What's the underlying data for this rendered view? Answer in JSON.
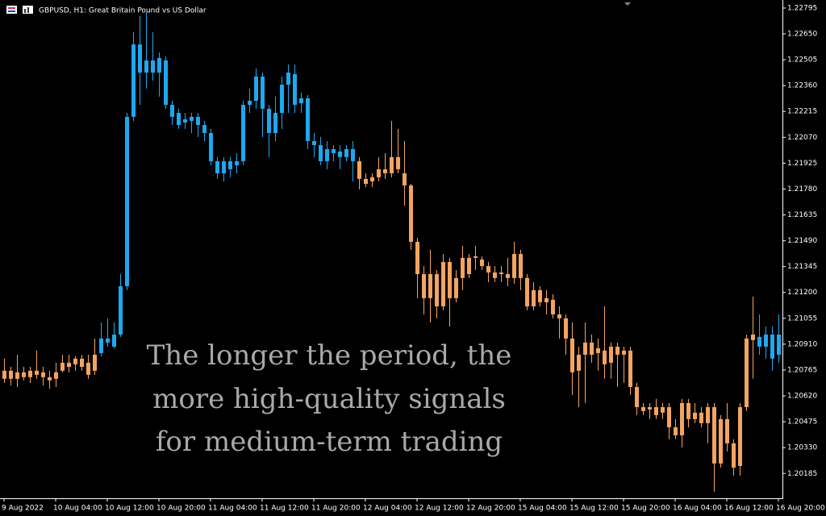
{
  "chart_data": {
    "type": "candlestick",
    "title": "GBPUSD, H1:  Great Britain Pound vs US Dollar",
    "annotation": [
      "The longer the period, the",
      "more high-quality signals",
      "for medium-term trading"
    ],
    "categories": [
      "9 Aug 2022",
      null,
      null,
      null,
      null,
      null,
      null,
      null,
      "10 Aug 04:00",
      null,
      null,
      null,
      null,
      null,
      null,
      null,
      "10 Aug 12:00",
      null,
      null,
      null,
      null,
      null,
      null,
      null,
      "10 Aug 20:00",
      null,
      null,
      null,
      null,
      null,
      null,
      null,
      "11 Aug 04:00",
      null,
      null,
      null,
      null,
      null,
      null,
      null,
      "11 Aug 12:00",
      null,
      null,
      null,
      null,
      null,
      null,
      null,
      "11 Aug 20:00",
      null,
      null,
      null,
      null,
      null,
      null,
      null,
      "12 Aug 04:00",
      null,
      null,
      null,
      null,
      null,
      null,
      null,
      "12 Aug 12:00",
      null,
      null,
      null,
      null,
      null,
      null,
      null,
      "12 Aug 20:00",
      null,
      null,
      null,
      null,
      null,
      null,
      null,
      "15 Aug 04:00",
      null,
      null,
      null,
      null,
      null,
      null,
      null,
      "15 Aug 12:00",
      null,
      null,
      null,
      null,
      null,
      null,
      null,
      "15 Aug 20:00",
      null,
      null,
      null,
      null,
      null,
      null,
      null,
      "16 Aug 04:00",
      null,
      null,
      null,
      null,
      null,
      null,
      null,
      "16 Aug 12:00",
      null,
      null,
      null,
      null,
      null,
      null,
      null,
      "16 Aug 20:00"
    ],
    "ohlc": [
      [
        1.20761,
        1.20829,
        1.20693,
        1.20716
      ],
      [
        1.20716,
        1.20783,
        1.20679,
        1.20761
      ],
      [
        1.20752,
        1.20851,
        1.2067,
        1.20716
      ],
      [
        1.20725,
        1.20783,
        1.20707,
        1.20752
      ],
      [
        1.20761,
        1.20783,
        1.20693,
        1.20725
      ],
      [
        1.20738,
        1.20874,
        1.20716,
        1.20761
      ],
      [
        1.20752,
        1.20783,
        1.20679,
        1.20725
      ],
      [
        1.20725,
        1.20761,
        1.20661,
        1.20707
      ],
      [
        1.20716,
        1.20806,
        1.2067,
        1.20752
      ],
      [
        1.20761,
        1.20851,
        1.20752,
        1.20806
      ],
      [
        1.20806,
        1.20851,
        1.20752,
        1.20783
      ],
      [
        1.20797,
        1.20842,
        1.20761,
        1.20829
      ],
      [
        1.20829,
        1.20851,
        1.20761,
        1.20783
      ],
      [
        1.20806,
        1.20851,
        1.20716,
        1.20738
      ],
      [
        1.20761,
        1.20942,
        1.20738,
        1.20851
      ],
      [
        1.2086,
        1.21032,
        1.20842,
        1.20942
      ],
      [
        1.20919,
        1.21055,
        1.20896,
        1.20942
      ],
      [
        1.20896,
        1.21032,
        1.20887,
        1.20964
      ],
      [
        1.20964,
        1.21303,
        1.20951,
        1.21235
      ],
      [
        1.21235,
        1.22207,
        1.21213,
        1.22185
      ],
      [
        1.22185,
        1.22659,
        1.22162,
        1.22591
      ],
      [
        1.22433,
        1.2275,
        1.22252,
        1.22591
      ],
      [
        1.22433,
        1.22772,
        1.22343,
        1.22501
      ],
      [
        1.22501,
        1.22659,
        1.22388,
        1.22433
      ],
      [
        1.22433,
        1.22546,
        1.22298,
        1.22515
      ],
      [
        1.22501,
        1.22524,
        1.2223,
        1.22252
      ],
      [
        1.22252,
        1.22275,
        1.22139,
        1.22185
      ],
      [
        1.22207,
        1.2223,
        1.22117,
        1.22139
      ],
      [
        1.22171,
        1.22207,
        1.22117,
        1.22153
      ],
      [
        1.22162,
        1.22207,
        1.22094,
        1.22185
      ],
      [
        1.22185,
        1.22207,
        1.22072,
        1.22139
      ],
      [
        1.22139,
        1.22162,
        1.22049,
        1.22094
      ],
      [
        1.22094,
        1.22117,
        1.21913,
        1.21936
      ],
      [
        1.21936,
        1.21959,
        1.21837,
        1.21868
      ],
      [
        1.21868,
        1.21959,
        1.21823,
        1.21936
      ],
      [
        1.21936,
        1.21959,
        1.21846,
        1.21891
      ],
      [
        1.21913,
        1.21981,
        1.21868,
        1.21936
      ],
      [
        1.21936,
        1.22275,
        1.21913,
        1.22252
      ],
      [
        1.22252,
        1.22343,
        1.22207,
        1.22275
      ],
      [
        1.22275,
        1.22456,
        1.2223,
        1.22411
      ],
      [
        1.22411,
        1.22433,
        1.22072,
        1.2223
      ],
      [
        1.2223,
        1.22252,
        1.21959,
        1.22094
      ],
      [
        1.22094,
        1.22298,
        1.22049,
        1.22207
      ],
      [
        1.22207,
        1.22411,
        1.22117,
        1.22365
      ],
      [
        1.22365,
        1.22478,
        1.22207,
        1.22433
      ],
      [
        1.22424,
        1.22478,
        1.22207,
        1.22252
      ],
      [
        1.22261,
        1.2232,
        1.22207,
        1.22289
      ],
      [
        1.22289,
        1.22307,
        1.22004,
        1.22049
      ],
      [
        1.22049,
        1.22094,
        1.21959,
        1.22026
      ],
      [
        1.22026,
        1.22072,
        1.21913,
        1.21936
      ],
      [
        1.21936,
        1.22049,
        1.21891,
        1.22004
      ],
      [
        1.22004,
        1.22026,
        1.21936,
        1.21981
      ],
      [
        1.2199,
        1.22026,
        1.21891,
        1.21959
      ],
      [
        1.21959,
        1.22026,
        1.21936,
        1.22004
      ],
      [
        1.22004,
        1.22049,
        1.21823,
        1.21936
      ],
      [
        1.21936,
        1.21959,
        1.21778,
        1.21837
      ],
      [
        1.21837,
        1.21868,
        1.21791,
        1.21809
      ],
      [
        1.21823,
        1.21868,
        1.21791,
        1.21846
      ],
      [
        1.21846,
        1.21959,
        1.21823,
        1.21891
      ],
      [
        1.21891,
        1.21981,
        1.21837,
        1.21868
      ],
      [
        1.21868,
        1.22162,
        1.21846,
        1.21959
      ],
      [
        1.21959,
        1.22117,
        1.21868,
        1.21891
      ],
      [
        1.21868,
        1.22049,
        1.21687,
        1.218
      ],
      [
        1.218,
        1.21809,
        1.21439,
        1.21484
      ],
      [
        1.21484,
        1.21507,
        1.21168,
        1.21303
      ],
      [
        1.21303,
        1.21348,
        1.21077,
        1.21168
      ],
      [
        1.21168,
        1.21439,
        1.21032,
        1.21303
      ],
      [
        1.21303,
        1.21326,
        1.21055,
        1.21122
      ],
      [
        1.21122,
        1.21416,
        1.211,
        1.21371
      ],
      [
        1.21371,
        1.21394,
        1.21009,
        1.21168
      ],
      [
        1.21168,
        1.21326,
        1.21145,
        1.21281
      ],
      [
        1.21281,
        1.21461,
        1.21213,
        1.21394
      ],
      [
        1.21394,
        1.21416,
        1.21281,
        1.21303
      ],
      [
        1.21403,
        1.21461,
        1.21326,
        1.21394
      ],
      [
        1.21385,
        1.21403,
        1.21326,
        1.21348
      ],
      [
        1.21348,
        1.21371,
        1.21258,
        1.21312
      ],
      [
        1.21312,
        1.21348,
        1.21258,
        1.21281
      ],
      [
        1.21303,
        1.21348,
        1.21258,
        1.21312
      ],
      [
        1.21303,
        1.21394,
        1.21235,
        1.21281
      ],
      [
        1.21281,
        1.21484,
        1.21249,
        1.21416
      ],
      [
        1.21416,
        1.21439,
        1.21213,
        1.21281
      ],
      [
        1.21281,
        1.21303,
        1.211,
        1.21122
      ],
      [
        1.21122,
        1.21258,
        1.211,
        1.21213
      ],
      [
        1.21213,
        1.21235,
        1.21122,
        1.21145
      ],
      [
        1.21145,
        1.21213,
        1.21077,
        1.21168
      ],
      [
        1.21159,
        1.2119,
        1.21055,
        1.21077
      ],
      [
        1.21077,
        1.21122,
        1.20942,
        1.21055
      ],
      [
        1.21055,
        1.21077,
        1.20851,
        1.20942
      ],
      [
        1.20942,
        1.21032,
        1.20625,
        1.20752
      ],
      [
        1.20761,
        1.20896,
        1.20557,
        1.20851
      ],
      [
        1.20851,
        1.21032,
        1.2058,
        1.20919
      ],
      [
        1.20919,
        1.20964,
        1.20806,
        1.20851
      ],
      [
        1.2086,
        1.20942,
        1.20761,
        1.20887
      ],
      [
        1.20874,
        1.21122,
        1.20716,
        1.20797
      ],
      [
        1.20806,
        1.20919,
        1.20716,
        1.20896
      ],
      [
        1.20896,
        1.20919,
        1.2067,
        1.20851
      ],
      [
        1.20851,
        1.20896,
        1.20693,
        1.20874
      ],
      [
        1.20874,
        1.20896,
        1.20625,
        1.2067
      ],
      [
        1.2067,
        1.20693,
        1.20512,
        1.20557
      ],
      [
        1.20557,
        1.2058,
        1.20512,
        1.20535
      ],
      [
        1.20544,
        1.2058,
        1.2049,
        1.20557
      ],
      [
        1.20557,
        1.20603,
        1.2049,
        1.20512
      ],
      [
        1.20526,
        1.2058,
        1.2049,
        1.20557
      ],
      [
        1.20557,
        1.2058,
        1.20377,
        1.20444
      ],
      [
        1.20444,
        1.2049,
        1.20377,
        1.20399
      ],
      [
        1.20399,
        1.20603,
        1.20331,
        1.2058
      ],
      [
        1.2058,
        1.20603,
        1.20444,
        1.2049
      ],
      [
        1.2049,
        1.2058,
        1.20467,
        1.20526
      ],
      [
        1.20526,
        1.20557,
        1.20444,
        1.20467
      ],
      [
        1.20467,
        1.2058,
        1.20354,
        1.20557
      ],
      [
        1.20557,
        1.2058,
        1.20083,
        1.20241
      ],
      [
        1.20241,
        1.20512,
        1.20218,
        1.2049
      ],
      [
        1.2049,
        1.2058,
        1.20309,
        1.20354
      ],
      [
        1.20354,
        1.20377,
        1.20173,
        1.20218
      ],
      [
        1.20227,
        1.2058,
        1.20173,
        1.20557
      ],
      [
        1.20557,
        1.20964,
        1.20535,
        1.20942
      ],
      [
        1.20933,
        1.21177,
        1.20716,
        1.20964
      ],
      [
        1.20951,
        1.21077,
        1.20851,
        1.20896
      ],
      [
        1.20896,
        1.21009,
        1.20829,
        1.20964
      ],
      [
        1.20964,
        1.21009,
        1.20761,
        1.20829
      ],
      [
        1.20851,
        1.21077,
        1.20806,
        1.20964
      ]
    ],
    "colors": [
      "#f4a460",
      "#f4a460",
      "#f4a460",
      "#f4a460",
      "#f4a460",
      "#f4a460",
      "#f4a460",
      "#f4a460",
      "#f4a460",
      "#f4a460",
      "#f4a460",
      "#f4a460",
      "#f4a460",
      "#f4a460",
      "#f4a460",
      "#1ea8f0",
      "#1ea8f0",
      "#1ea8f0",
      "#1ea8f0",
      "#1ea8f0",
      "#1ea8f0",
      "#1ea8f0",
      "#1ea8f0",
      "#1ea8f0",
      "#1ea8f0",
      "#1ea8f0",
      "#1ea8f0",
      "#1ea8f0",
      "#1ea8f0",
      "#1ea8f0",
      "#1ea8f0",
      "#1ea8f0",
      "#1ea8f0",
      "#1ea8f0",
      "#1ea8f0",
      "#1ea8f0",
      "#1ea8f0",
      "#1ea8f0",
      "#1ea8f0",
      "#1ea8f0",
      "#1ea8f0",
      "#1ea8f0",
      "#1ea8f0",
      "#1ea8f0",
      "#1ea8f0",
      "#1ea8f0",
      "#1ea8f0",
      "#1ea8f0",
      "#1ea8f0",
      "#1ea8f0",
      "#1ea8f0",
      "#1ea8f0",
      "#1ea8f0",
      "#1ea8f0",
      "#1ea8f0",
      "#f4a460",
      "#f4a460",
      "#f4a460",
      "#f4a460",
      "#f4a460",
      "#f4a460",
      "#f4a460",
      "#f4a460",
      "#f4a460",
      "#f4a460",
      "#f4a460",
      "#f4a460",
      "#f4a460",
      "#f4a460",
      "#f4a460",
      "#f4a460",
      "#f4a460",
      "#f4a460",
      "#f4a460",
      "#f4a460",
      "#f4a460",
      "#f4a460",
      "#f4a460",
      "#f4a460",
      "#f4a460",
      "#f4a460",
      "#f4a460",
      "#f4a460",
      "#f4a460",
      "#f4a460",
      "#f4a460",
      "#f4a460",
      "#f4a460",
      "#f4a460",
      "#f4a460",
      "#f4a460",
      "#f4a460",
      "#f4a460",
      "#f4a460",
      "#f4a460",
      "#f4a460",
      "#f4a460",
      "#f4a460",
      "#f4a460",
      "#f4a460",
      "#f4a460",
      "#f4a460",
      "#f4a460",
      "#f4a460",
      "#f4a460",
      "#f4a460",
      "#f4a460",
      "#f4a460",
      "#f4a460",
      "#f4a460",
      "#f4a460",
      "#f4a460",
      "#f4a460",
      "#f4a460",
      "#f4a460",
      "#f4a460",
      "#f4a460",
      "#1ea8f0",
      "#1ea8f0",
      "#1ea8f0",
      "#1ea8f0"
    ],
    "ylim": [
      1.20046,
      1.2284
    ],
    "yticks": [
      1.22795,
      {
        "value": 1.2265,
        "label": "1.22650"
      },
      1.22505,
      {
        "value": 1.2236,
        "label": "1.22360"
      },
      1.22215,
      {
        "value": 1.2207,
        "label": "1.22070"
      },
      1.21925,
      {
        "value": 1.2178,
        "label": "1.21780"
      },
      1.21635,
      {
        "value": 1.2149,
        "label": "1.21490"
      },
      1.21345,
      {
        "value": 1.212,
        "label": "1.21200"
      },
      1.21055,
      {
        "value": 1.2091,
        "label": "1.20910"
      },
      1.20765,
      {
        "value": 1.2062,
        "label": "1.20620"
      },
      1.20475,
      {
        "value": 1.2033,
        "label": "1.20330"
      },
      1.20185
    ],
    "grid": false
  }
}
